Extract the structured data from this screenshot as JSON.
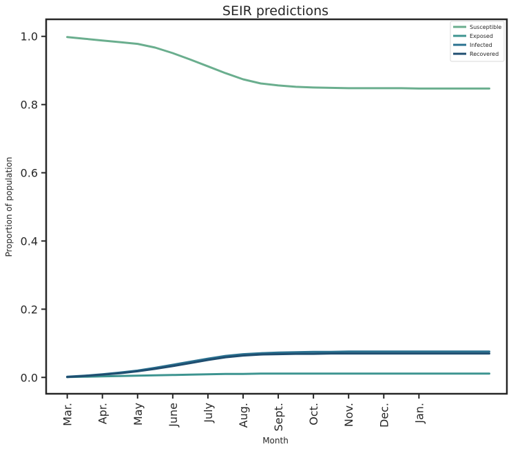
{
  "chart_data": {
    "type": "line",
    "title": "SEIR predictions",
    "xlabel": "Month",
    "ylabel": "Proportion of population",
    "ylim": [
      -0.048,
      1.05
    ],
    "xlim": [
      -0.6,
      12.5
    ],
    "yticks": [
      0.0,
      0.2,
      0.4,
      0.6,
      0.8,
      1.0
    ],
    "ytick_labels": [
      "0.0",
      "0.2",
      "0.4",
      "0.6",
      "0.8",
      "1.0"
    ],
    "xtick_positions": [
      0,
      1,
      2,
      3,
      4,
      5,
      6,
      7,
      8,
      9,
      10
    ],
    "xtick_labels": [
      "Mar.",
      "Apr.",
      "May",
      "June",
      "July",
      "Aug.",
      "Sept.",
      "Oct.",
      "Nov.",
      "Dec.",
      "Jan."
    ],
    "grid": false,
    "legend_position": "top-right",
    "x": [
      0,
      0.5,
      1,
      1.5,
      2,
      2.5,
      3,
      3.5,
      4,
      4.5,
      5,
      5.5,
      6,
      6.5,
      7,
      7.5,
      8,
      8.5,
      9,
      9.5,
      10,
      10.5,
      11,
      11.5,
      12
    ],
    "series": [
      {
        "name": "Susceptible",
        "color": "#6aae8e",
        "values": [
          0.998,
          0.993,
          0.988,
          0.983,
          0.978,
          0.967,
          0.951,
          0.932,
          0.912,
          0.892,
          0.874,
          0.862,
          0.856,
          0.852,
          0.85,
          0.849,
          0.848,
          0.848,
          0.848,
          0.848,
          0.847,
          0.847,
          0.847,
          0.847,
          0.847
        ]
      },
      {
        "name": "Exposed",
        "color": "#3d9490",
        "values": [
          0.001,
          0.002,
          0.003,
          0.004,
          0.005,
          0.006,
          0.007,
          0.008,
          0.009,
          0.01,
          0.01,
          0.011,
          0.011,
          0.011,
          0.011,
          0.011,
          0.011,
          0.011,
          0.011,
          0.011,
          0.011,
          0.011,
          0.011,
          0.011,
          0.011
        ]
      },
      {
        "name": "Infected",
        "color": "#2a7190",
        "values": [
          0.002,
          0.005,
          0.009,
          0.014,
          0.02,
          0.028,
          0.037,
          0.046,
          0.055,
          0.063,
          0.068,
          0.071,
          0.073,
          0.074,
          0.075,
          0.075,
          0.076,
          0.076,
          0.076,
          0.076,
          0.076,
          0.076,
          0.076,
          0.076,
          0.076
        ]
      },
      {
        "name": "Recovered",
        "color": "#1f4e70",
        "values": [
          0.001,
          0.004,
          0.008,
          0.012,
          0.018,
          0.025,
          0.033,
          0.042,
          0.051,
          0.059,
          0.064,
          0.067,
          0.068,
          0.069,
          0.069,
          0.07,
          0.07,
          0.07,
          0.07,
          0.07,
          0.07,
          0.07,
          0.07,
          0.07,
          0.07
        ]
      }
    ]
  }
}
